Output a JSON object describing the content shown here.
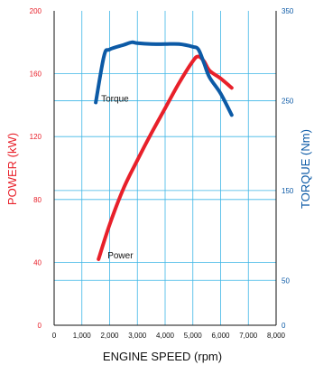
{
  "chart_data": {
    "type": "line",
    "xlabel": "ENGINE SPEED (rpm)",
    "ylabel": "POWER (kW)",
    "y2label": "TORQUE (Nm)",
    "xlim": [
      0,
      8000
    ],
    "ylim": [
      0,
      200
    ],
    "y2lim": [
      0,
      350
    ],
    "x_ticks": [
      "0",
      "1,000",
      "2,000",
      "3,000",
      "4,000",
      "5,000",
      "6,000",
      "7,000",
      "8,000"
    ],
    "y_ticks": [
      "0",
      "40",
      "80",
      "120",
      "160",
      "200"
    ],
    "y2_ticks": [
      "0",
      "50",
      "150",
      "250",
      "350"
    ],
    "grid": true,
    "colors": {
      "power": "#e8202a",
      "torque": "#0c5aa6",
      "grid": "#3eb6e6",
      "power_axis": "#e8202a",
      "torque_axis": "#0c5aa6"
    },
    "series": [
      {
        "name": "Power",
        "axis": "left",
        "x": [
          1600,
          2000,
          2500,
          3000,
          3500,
          4000,
          4500,
          5000,
          5200,
          5400,
          5600,
          6000,
          6400
        ],
        "values": [
          42,
          64,
          87,
          105,
          122,
          138,
          154,
          168,
          171,
          168,
          162,
          157,
          151
        ]
      },
      {
        "name": "Torque",
        "axis": "right",
        "x": [
          1500,
          1800,
          2000,
          2500,
          2800,
          3000,
          3500,
          4000,
          4500,
          5000,
          5200,
          5400,
          5600,
          6000,
          6400
        ],
        "values": [
          248,
          300,
          307,
          312,
          315,
          314,
          313,
          313,
          313,
          310,
          307,
          292,
          276,
          258,
          234
        ]
      }
    ]
  }
}
